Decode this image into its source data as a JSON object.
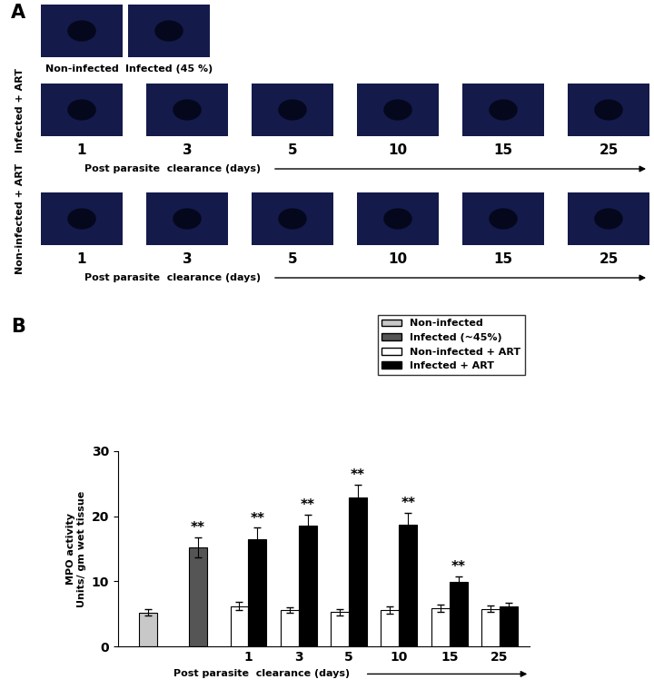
{
  "panel_a": {
    "label": "A",
    "top_row": [
      "Non-infected",
      "Infected (45 %)"
    ],
    "rows": [
      {
        "label": "Infected + ART",
        "days": [
          1,
          3,
          5,
          10,
          15,
          25
        ],
        "axis_label": "Post parasite  clearance (days)"
      },
      {
        "label": "Non-infected + ART",
        "days": [
          1,
          3,
          5,
          10,
          15,
          25
        ],
        "axis_label": "Post parasite  clearance (days)"
      }
    ]
  },
  "panel_b_label": "B",
  "chart_data": {
    "type": "bar",
    "y_label": "MPO activity\nUnits/ gm wet tissue",
    "x_label": "Post parasite  clearance (days)",
    "categories": [
      null,
      null,
      "1",
      "3",
      "5",
      "10",
      "15",
      "25"
    ],
    "series": [
      {
        "name": "Non-infected",
        "color": "#c8c8c8",
        "values": [
          5.2,
          null,
          null,
          null,
          null,
          null,
          null,
          null
        ],
        "errors": [
          0.5,
          null,
          null,
          null,
          null,
          null,
          null,
          null
        ],
        "significance": [
          null,
          null,
          null,
          null,
          null,
          null,
          null,
          null
        ]
      },
      {
        "name": "Infected (~45%)",
        "color": "#555555",
        "values": [
          null,
          15.2,
          null,
          null,
          null,
          null,
          null,
          null
        ],
        "errors": [
          null,
          1.5,
          null,
          null,
          null,
          null,
          null,
          null
        ],
        "significance": [
          null,
          "**",
          null,
          null,
          null,
          null,
          null,
          null
        ]
      },
      {
        "name": "Non-infected + ART",
        "color": "#ffffff",
        "values": [
          null,
          null,
          6.2,
          5.6,
          5.3,
          5.6,
          5.9,
          5.8
        ],
        "errors": [
          null,
          null,
          0.6,
          0.4,
          0.5,
          0.5,
          0.6,
          0.5
        ],
        "significance": [
          null,
          null,
          null,
          null,
          null,
          null,
          null,
          null
        ]
      },
      {
        "name": "Infected + ART",
        "color": "#000000",
        "values": [
          null,
          null,
          16.5,
          18.5,
          22.8,
          18.7,
          9.9,
          6.2
        ],
        "errors": [
          null,
          null,
          1.7,
          1.7,
          2.0,
          1.8,
          0.8,
          0.5
        ],
        "significance": [
          null,
          null,
          "**",
          "**",
          "**",
          "**",
          "**",
          null
        ]
      }
    ],
    "ylim": [
      0,
      30
    ],
    "yticks": [
      0,
      10,
      20,
      30
    ],
    "grid": false,
    "legend": "upper right"
  }
}
